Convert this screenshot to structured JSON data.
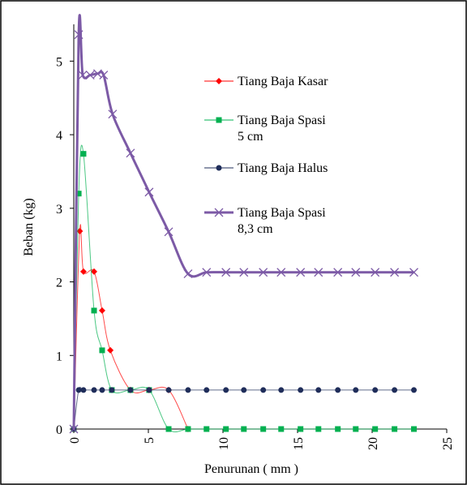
{
  "chart_data": {
    "type": "line",
    "x_label": "Penurunan ( mm )",
    "y_label": "Beban (kg)",
    "xlim": [
      0,
      25
    ],
    "xticks": [
      0,
      5,
      10,
      15,
      20,
      25
    ],
    "ylim": [
      0,
      5.5
    ],
    "yticks": [
      0,
      1,
      2,
      3,
      4,
      5
    ],
    "smooth": true,
    "series": [
      {
        "name": "Tiang Baja Kasar",
        "color": "#ff0000",
        "marker": "diamond",
        "line_width": 1,
        "x": [
          0,
          0.4,
          0.65,
          1.36,
          1.9,
          2.45,
          3.8,
          5.05,
          6.36,
          7.66
        ],
        "values": [
          0,
          2.69,
          2.14,
          2.14,
          1.61,
          1.07,
          0.53,
          0.53,
          0.53,
          0
        ]
      },
      {
        "name": "Tiang Baja Spasi 5 cm",
        "color": "#00b050",
        "marker": "square",
        "line_width": 1,
        "x": [
          0,
          0.33,
          0.65,
          1.36,
          1.9,
          2.55,
          3.8,
          5.05,
          6.36,
          7.66,
          8.9,
          10.2,
          11.4,
          12.7,
          13.9,
          15.2,
          16.4,
          17.7,
          18.9,
          20.2,
          21.5,
          22.8
        ],
        "values": [
          0,
          3.2,
          3.74,
          1.61,
          1.07,
          0.53,
          0.53,
          0.53,
          0,
          0,
          0,
          0,
          0,
          0,
          0,
          0,
          0,
          0,
          0,
          0,
          0,
          0
        ]
      },
      {
        "name": "Tiang Baja Halus",
        "color": "#1f2d5a",
        "marker": "circle",
        "line_width": 1,
        "x": [
          0,
          0.33,
          0.65,
          1.36,
          1.9,
          2.55,
          3.8,
          5.05,
          6.36,
          7.66,
          8.9,
          10.2,
          11.4,
          12.7,
          13.9,
          15.2,
          16.4,
          17.7,
          18.9,
          20.2,
          21.5,
          22.8
        ],
        "values": [
          0,
          0.53,
          0.53,
          0.53,
          0.53,
          0.53,
          0.53,
          0.53,
          0.53,
          0.53,
          0.53,
          0.53,
          0.53,
          0.53,
          0.53,
          0.53,
          0.53,
          0.53,
          0.53,
          0.53,
          0.53,
          0.53
        ]
      },
      {
        "name": "Tiang Baja Spasi 8,3 cm",
        "color": "#7c5aa6",
        "marker": "x",
        "line_width": 3,
        "x": [
          0,
          0.33,
          0.6,
          1.1,
          1.6,
          2.0,
          2.6,
          3.8,
          5.05,
          6.36,
          7.66,
          8.9,
          10.2,
          11.4,
          12.7,
          13.9,
          15.2,
          16.4,
          17.7,
          18.9,
          20.2,
          21.5,
          22.8
        ],
        "values": [
          0,
          5.36,
          4.81,
          4.81,
          4.83,
          4.81,
          4.28,
          3.75,
          3.22,
          2.68,
          2.11,
          2.13,
          2.13,
          2.13,
          2.13,
          2.13,
          2.13,
          2.13,
          2.13,
          2.13,
          2.13,
          2.13,
          2.13
        ]
      }
    ]
  }
}
